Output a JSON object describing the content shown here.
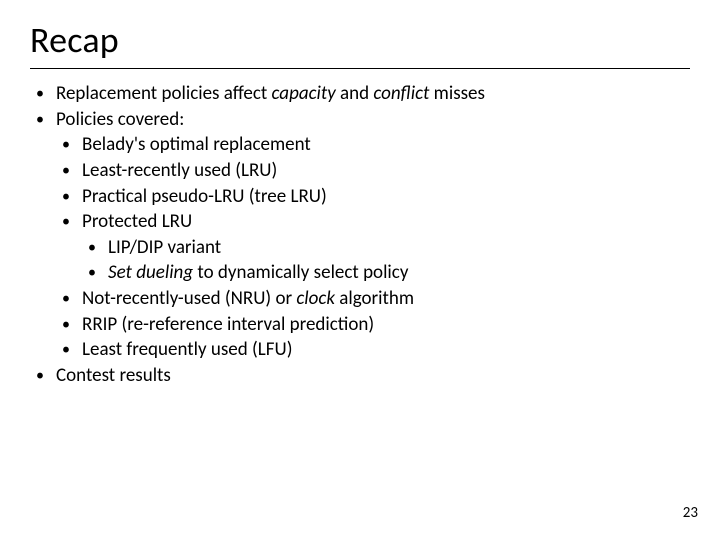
{
  "slide": {
    "title": "Recap",
    "page_number": "23",
    "styling": {
      "background_color": "#ffffff",
      "text_color": "#000000",
      "title_fontsize": 36,
      "body_fontsize": 19,
      "divider_color": "#000000",
      "font_family": "Calibri"
    },
    "lines": {
      "l1a": "Replacement policies affect ",
      "l1b": "capacity",
      "l1c": " and ",
      "l1d": "conflict",
      "l1e": " misses",
      "l2": "Policies covered:",
      "l3": "Belady's optimal replacement",
      "l4": "Least-recently used (LRU)",
      "l5": "Practical pseudo-LRU (tree LRU)",
      "l6": "Protected LRU",
      "l7": "LIP/DIP variant",
      "l8a": "Set dueling",
      "l8b": " to dynamically select policy",
      "l9a": "Not-recently-used (NRU) or ",
      "l9b": "clock",
      "l9c": " algorithm",
      "l10": "RRIP (re-reference interval prediction)",
      "l11": "Least frequently used (LFU)",
      "l12": "Contest results"
    }
  }
}
